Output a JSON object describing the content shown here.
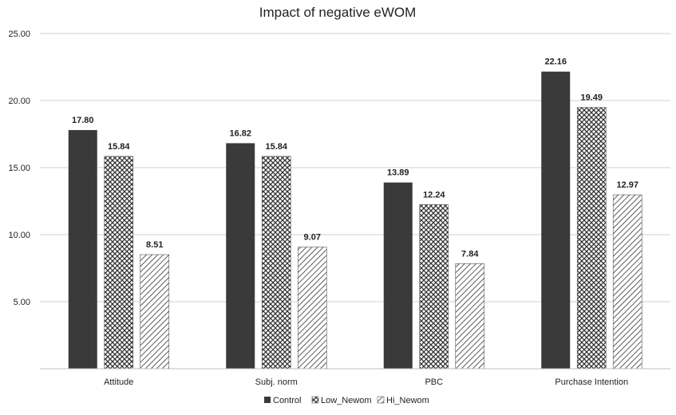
{
  "chart_data": {
    "type": "bar",
    "title": "Impact of negative eWOM",
    "xlabel": "",
    "ylabel": "",
    "categories": [
      "Attitude",
      "Subj. norm",
      "PBC",
      "Purchase Intention"
    ],
    "series": [
      {
        "name": "Control",
        "values": [
          17.8,
          16.82,
          13.89,
          22.16
        ],
        "labels": [
          "17.80",
          "16.82",
          "13.89",
          "22.16"
        ],
        "fill": "solid",
        "color": "#3a3a3a"
      },
      {
        "name": "Low_Newom",
        "values": [
          15.84,
          15.84,
          12.24,
          19.49
        ],
        "labels": [
          "15.84",
          "15.84",
          "12.24",
          "19.49"
        ],
        "fill": "crosshatch",
        "color": "#3a3a3a"
      },
      {
        "name": "Hi_Newom",
        "values": [
          8.51,
          9.07,
          7.84,
          12.97
        ],
        "labels": [
          "8.51",
          "9.07",
          "7.84",
          "12.97"
        ],
        "fill": "diagonal",
        "color": "#3a3a3a"
      }
    ],
    "ylim": [
      0,
      25
    ],
    "yticks": [
      {
        "value": 5,
        "label": "5.00"
      },
      {
        "value": 10,
        "label": "10.00"
      },
      {
        "value": 15,
        "label": "15.00"
      },
      {
        "value": 20,
        "label": "20.00"
      },
      {
        "value": 25,
        "label": "25.00"
      }
    ],
    "grid": true,
    "legend": "bottom-center"
  }
}
